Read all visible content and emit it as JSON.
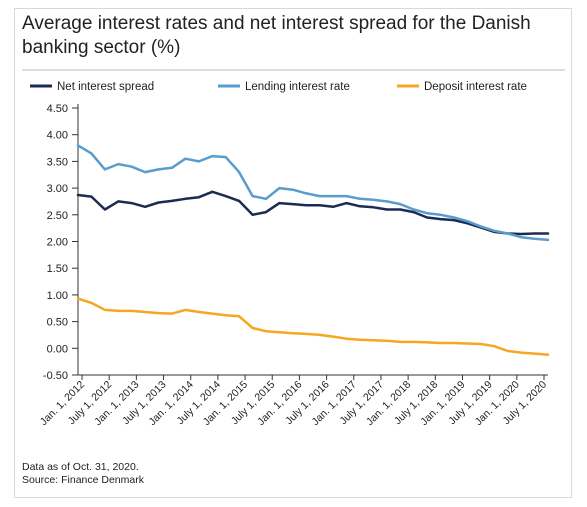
{
  "title": "Average interest rates and net interest spread for the Danish banking sector (%)",
  "footer": {
    "note": "Data as of Oct. 31, 2020.",
    "source": "Source: Finance Denmark"
  },
  "chart_data": {
    "type": "line",
    "title": "Average interest rates and net interest spread for the Danish banking sector (%)",
    "ylim": [
      -0.5,
      4.5
    ],
    "y_ticks": [
      -0.5,
      0.0,
      0.5,
      1.0,
      1.5,
      2.0,
      2.5,
      3.0,
      3.5,
      4.0,
      4.5
    ],
    "y_tick_labels": [
      "-0.50",
      "0.00",
      "0.50",
      "1.00",
      "1.50",
      "2.00",
      "2.50",
      "3.00",
      "3.50",
      "4.00",
      "4.50"
    ],
    "x_tick_labels": [
      "Jan. 1, 2012",
      "July 1, 2012",
      "Jan. 1, 2013",
      "July 1, 2013",
      "Jan. 1, 2014",
      "July 1, 2014",
      "Jan. 1, 2015",
      "July 1, 2015",
      "Jan. 1, 2016",
      "July 1, 2016",
      "Jan. 1, 2017",
      "July 1, 2017",
      "Jan. 1, 2018",
      "July 1, 2018",
      "Jan. 1, 2019",
      "July 1, 2019",
      "Jan. 1, 2020",
      "July 1, 2020"
    ],
    "x_start": "2012-01",
    "x_end": "2020-10",
    "grid": false,
    "legend_position": "top",
    "series": [
      {
        "name": "Net interest spread",
        "color": "#1b2c52",
        "x": [
          "2012-01",
          "2012-04",
          "2012-07",
          "2012-10",
          "2013-01",
          "2013-04",
          "2013-07",
          "2013-10",
          "2014-01",
          "2014-04",
          "2014-07",
          "2014-10",
          "2015-01",
          "2015-04",
          "2015-07",
          "2015-10",
          "2016-01",
          "2016-04",
          "2016-07",
          "2016-10",
          "2017-01",
          "2017-04",
          "2017-07",
          "2017-10",
          "2018-01",
          "2018-04",
          "2018-07",
          "2018-10",
          "2019-01",
          "2019-04",
          "2019-07",
          "2019-10",
          "2020-01",
          "2020-04",
          "2020-07",
          "2020-10"
        ],
        "values": [
          2.87,
          2.84,
          2.6,
          2.75,
          2.72,
          2.65,
          2.73,
          2.76,
          2.8,
          2.83,
          2.93,
          2.85,
          2.76,
          2.5,
          2.55,
          2.72,
          2.7,
          2.68,
          2.68,
          2.65,
          2.72,
          2.66,
          2.64,
          2.6,
          2.6,
          2.55,
          2.45,
          2.42,
          2.4,
          2.34,
          2.26,
          2.18,
          2.15,
          2.14,
          2.15,
          2.15
        ]
      },
      {
        "name": "Lending interest rate",
        "color": "#5a9ccc",
        "x": [
          "2012-01",
          "2012-04",
          "2012-07",
          "2012-10",
          "2013-01",
          "2013-04",
          "2013-07",
          "2013-10",
          "2014-01",
          "2014-04",
          "2014-07",
          "2014-10",
          "2015-01",
          "2015-04",
          "2015-07",
          "2015-10",
          "2016-01",
          "2016-04",
          "2016-07",
          "2016-10",
          "2017-01",
          "2017-04",
          "2017-07",
          "2017-10",
          "2018-01",
          "2018-04",
          "2018-07",
          "2018-10",
          "2019-01",
          "2019-04",
          "2019-07",
          "2019-10",
          "2020-01",
          "2020-04",
          "2020-07",
          "2020-10"
        ],
        "values": [
          3.8,
          3.65,
          3.35,
          3.45,
          3.4,
          3.3,
          3.35,
          3.38,
          3.55,
          3.5,
          3.6,
          3.58,
          3.3,
          2.85,
          2.8,
          3.0,
          2.97,
          2.9,
          2.85,
          2.85,
          2.85,
          2.8,
          2.78,
          2.75,
          2.7,
          2.6,
          2.53,
          2.5,
          2.45,
          2.38,
          2.28,
          2.2,
          2.15,
          2.08,
          2.05,
          2.03
        ]
      },
      {
        "name": "Deposit interest rate",
        "color": "#f5a623",
        "x": [
          "2012-01",
          "2012-04",
          "2012-07",
          "2012-10",
          "2013-01",
          "2013-04",
          "2013-07",
          "2013-10",
          "2014-01",
          "2014-04",
          "2014-07",
          "2014-10",
          "2015-01",
          "2015-04",
          "2015-07",
          "2015-10",
          "2016-01",
          "2016-04",
          "2016-07",
          "2016-10",
          "2017-01",
          "2017-04",
          "2017-07",
          "2017-10",
          "2018-01",
          "2018-04",
          "2018-07",
          "2018-10",
          "2019-01",
          "2019-04",
          "2019-07",
          "2019-10",
          "2020-01",
          "2020-04",
          "2020-07",
          "2020-10"
        ],
        "values": [
          0.93,
          0.85,
          0.72,
          0.7,
          0.7,
          0.68,
          0.66,
          0.65,
          0.72,
          0.68,
          0.65,
          0.62,
          0.6,
          0.38,
          0.32,
          0.3,
          0.28,
          0.27,
          0.25,
          0.22,
          0.18,
          0.16,
          0.15,
          0.14,
          0.12,
          0.12,
          0.11,
          0.1,
          0.1,
          0.09,
          0.08,
          0.04,
          -0.05,
          -0.08,
          -0.1,
          -0.12
        ]
      }
    ]
  }
}
